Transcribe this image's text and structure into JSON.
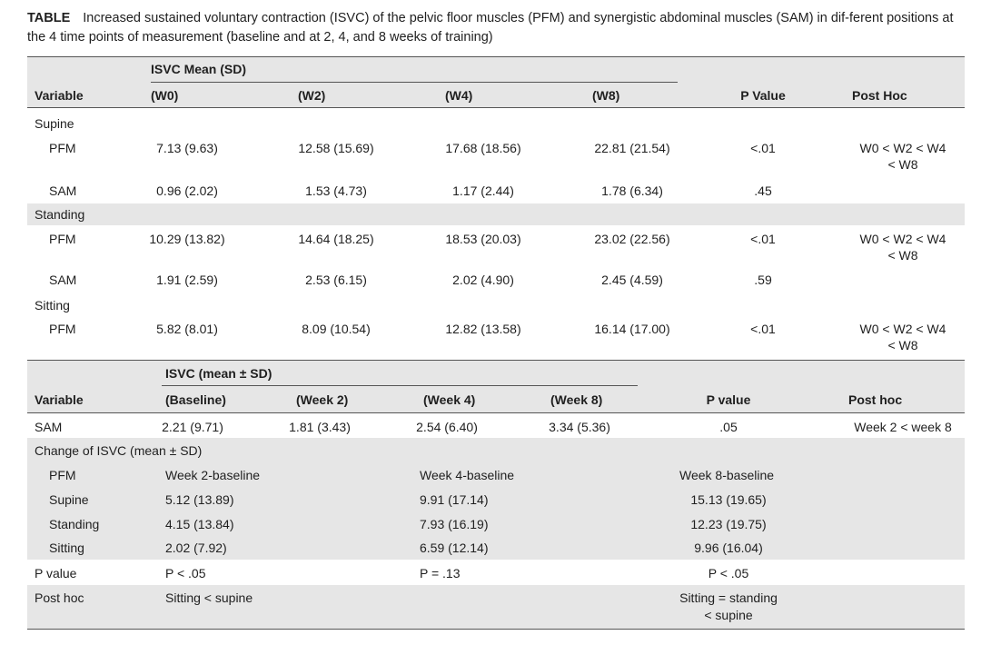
{
  "caption": {
    "label": "TABLE",
    "text": "Increased sustained voluntary contraction (ISVC) of the pelvic floor muscles (PFM) and synergistic abdominal muscles (SAM) in dif-ferent positions at the 4 time points of measurement (baseline and at 2, 4, and 8 weeks of training)"
  },
  "table1": {
    "group_header": "ISVC Mean (SD)",
    "headers": [
      "Variable",
      "(W0)",
      "(W2)",
      "(W4)",
      "(W8)",
      "P Value",
      "Post Hoc"
    ],
    "sections": [
      {
        "name": "Supine",
        "rows": [
          {
            "label": "PFM",
            "w0": "7.13 (9.63)",
            "w2": "12.58 (15.69)",
            "w4": "17.68 (18.56)",
            "w8": "22.81 (21.54)",
            "p": "<.01",
            "posthoc1": "W0 < W2 < W4",
            "posthoc2": "< W8"
          },
          {
            "label": "SAM",
            "w0": "0.96 (2.02)",
            "w2": "1.53 (4.73)",
            "w4": "1.17 (2.44)",
            "w8": "1.78 (6.34)",
            "p": ".45",
            "posthoc1": "",
            "posthoc2": ""
          }
        ]
      },
      {
        "name": "Standing",
        "rows": [
          {
            "label": "PFM",
            "w0": "10.29 (13.82)",
            "w2": "14.64 (18.25)",
            "w4": "18.53 (20.03)",
            "w8": "23.02 (22.56)",
            "p": "<.01",
            "posthoc1": "W0 < W2 < W4",
            "posthoc2": "< W8"
          },
          {
            "label": "SAM",
            "w0": "1.91 (2.59)",
            "w2": "2.53 (6.15)",
            "w4": "2.02 (4.90)",
            "w8": "2.45 (4.59)",
            "p": ".59",
            "posthoc1": "",
            "posthoc2": ""
          }
        ]
      },
      {
        "name": "Sitting",
        "rows": [
          {
            "label": "PFM",
            "w0": "5.82 (8.01)",
            "w2": "8.09 (10.54)",
            "w4": "12.82 (13.58)",
            "w8": "16.14 (17.00)",
            "p": "<.01",
            "posthoc1": "W0 < W2 < W4",
            "posthoc2": "< W8"
          }
        ]
      }
    ]
  },
  "table2": {
    "group_header": "ISVC (mean ± SD)",
    "headers": [
      "Variable",
      "(Baseline)",
      "(Week 2)",
      "(Week 4)",
      "(Week 8)",
      "P value",
      "Post hoc"
    ],
    "sam_row": {
      "label": "SAM",
      "baseline": "2.21 (9.71)",
      "week2": "1.81 (3.43)",
      "week4": "2.54 (6.40)",
      "week8": "3.34 (5.36)",
      "p": ".05",
      "posthoc": "Week 2 < week 8"
    },
    "change_title": "Change of ISVC (mean ± SD)",
    "change_header": {
      "label": "PFM",
      "c1": "Week 2-baseline",
      "c2": "Week 4-baseline",
      "c3": "Week 8-baseline"
    },
    "change_rows": [
      {
        "label": "Supine",
        "c1": "5.12 (13.89)",
        "c2": "9.91 (17.14)",
        "c3": "15.13 (19.65)"
      },
      {
        "label": "Standing",
        "c1": "4.15 (13.84)",
        "c2": "7.93 (16.19)",
        "c3": "12.23 (19.75)"
      },
      {
        "label": "Sitting",
        "c1": "2.02 (7.92)",
        "c2": "6.59 (12.14)",
        "c3": "9.96 (16.04)"
      }
    ],
    "pvalue_row": {
      "label": "P value",
      "c1": "P < .05",
      "c2": "P = .13",
      "c3": "P < .05"
    },
    "posthoc_row": {
      "label": "Post hoc",
      "c1": "Sitting < supine",
      "c3a": "Sitting = standing",
      "c3b": "< supine"
    }
  }
}
